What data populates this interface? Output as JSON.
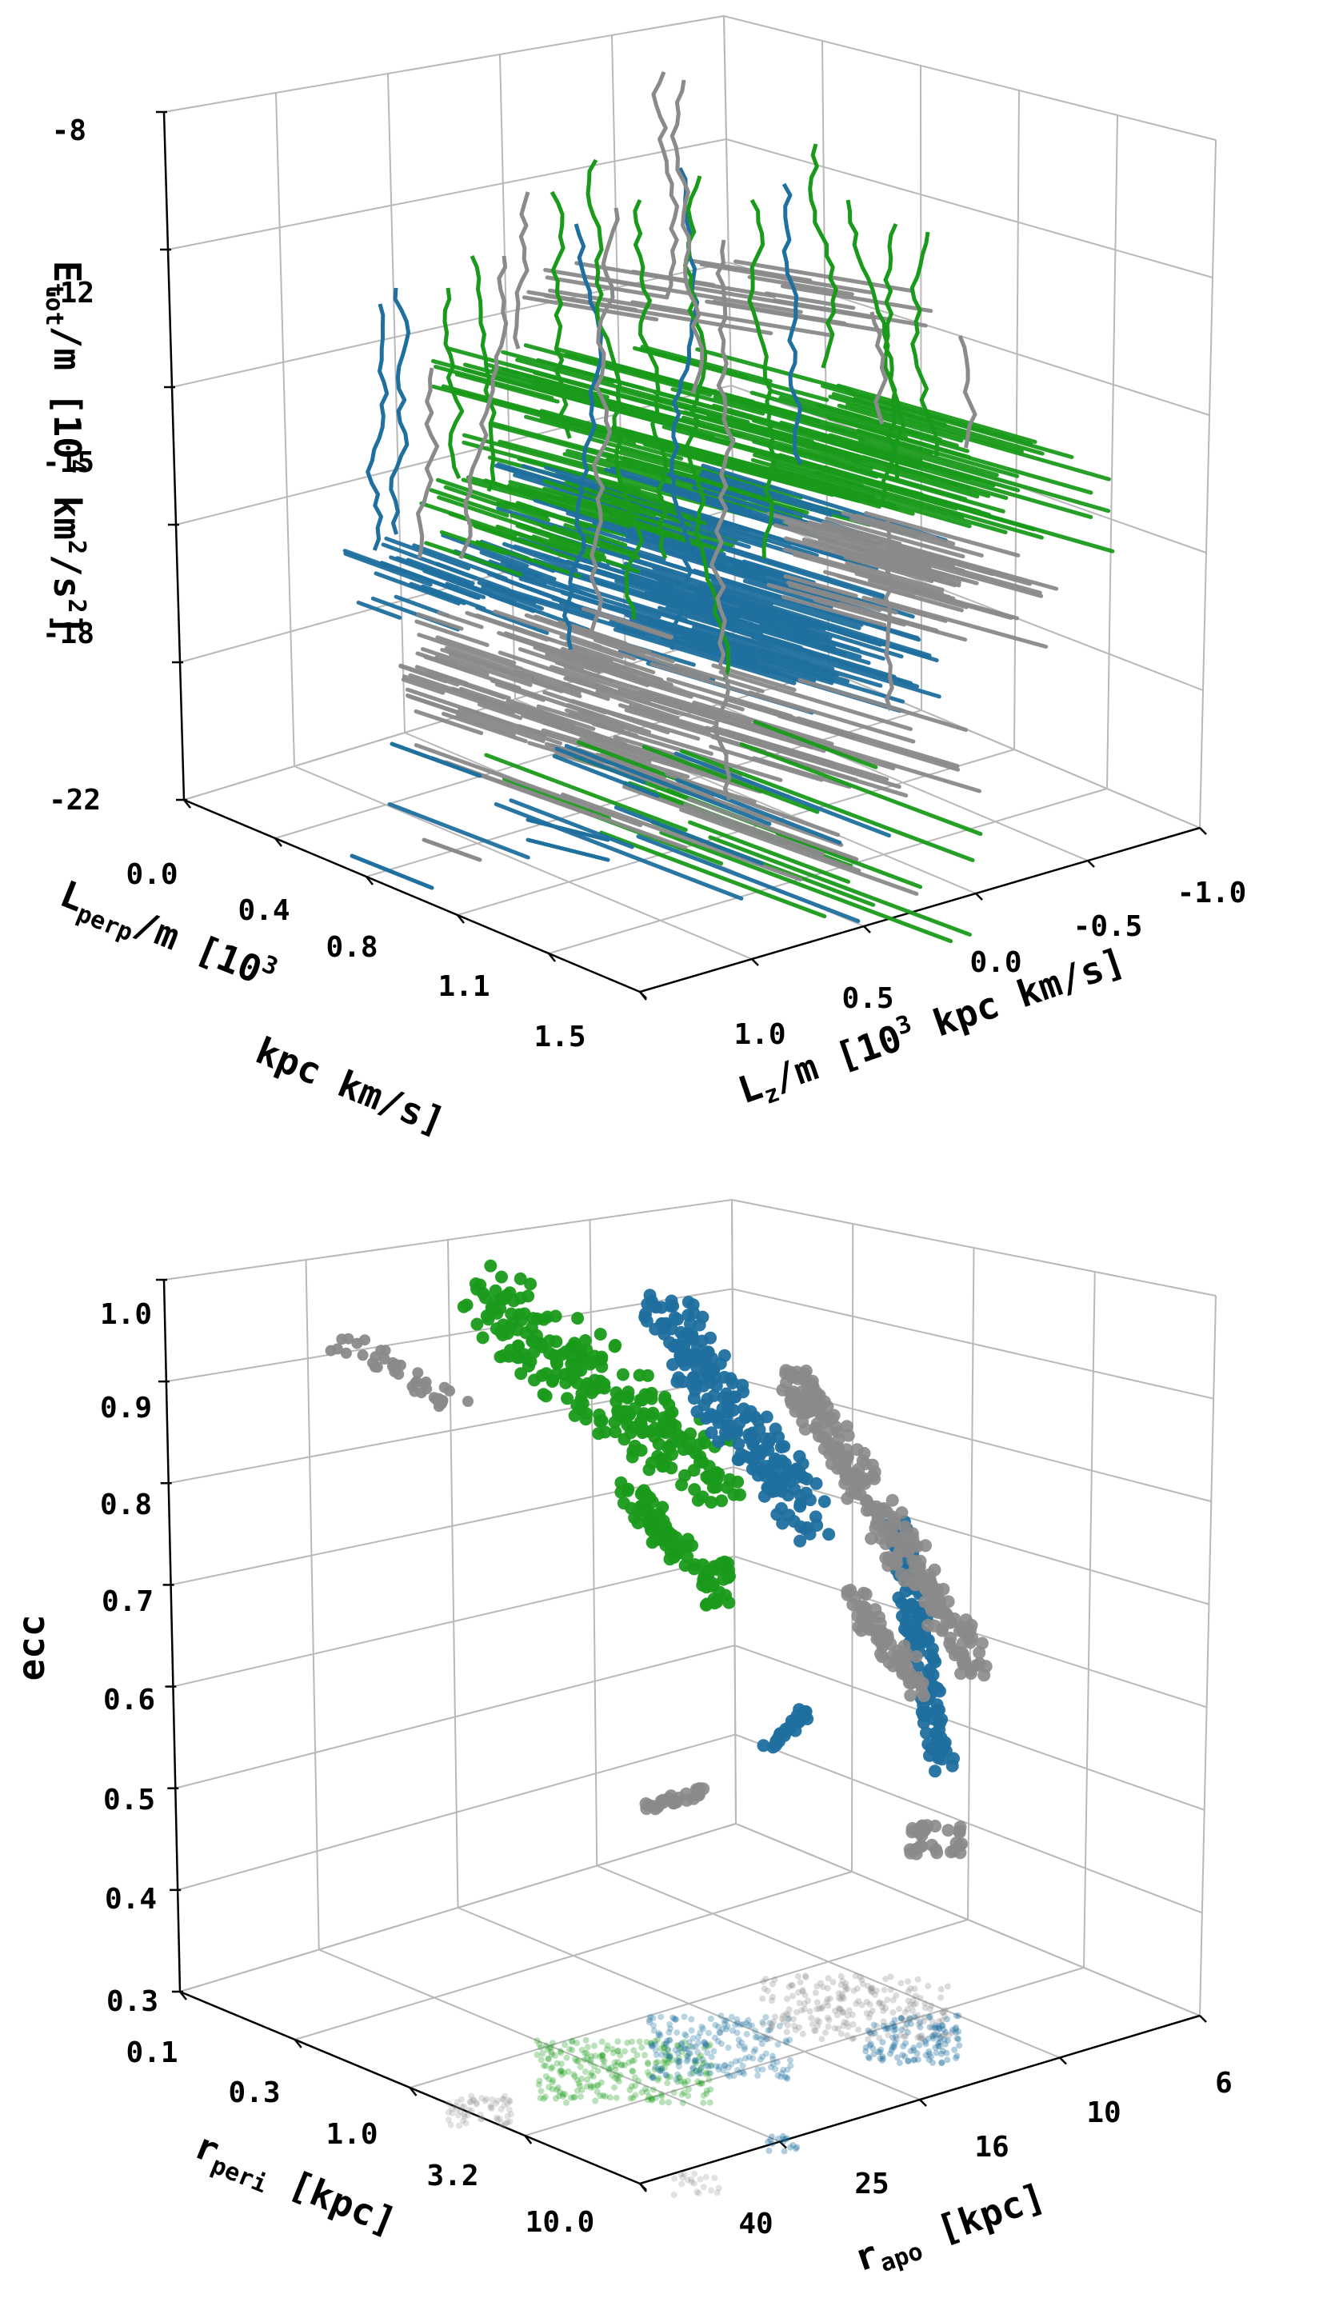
{
  "colors": {
    "blue": "#1f6f9f",
    "green": "#1a9a1a",
    "gray": "#8a8a8a",
    "grid": "#b8b8b8"
  },
  "chart_data": [
    {
      "type": "line",
      "projection": "3d",
      "title": "",
      "zlabel_text": "E",
      "zlabel_sub": "tot",
      "zlabel_rest": "/m [10",
      "zlabel_sup": "4",
      "zlabel_rest2": " km",
      "zlabel_sup2": "2",
      "zlabel_rest3": "/s",
      "zlabel_sup3": "2",
      "zlabel_end": "]",
      "xlabel_text": "L",
      "xlabel_sub": "perp",
      "xlabel_rest": "/m [10",
      "xlabel_sup": "3",
      "xlabel_line2": "kpc km/s]",
      "ylabel_text": "L",
      "ylabel_sub": "z",
      "ylabel_rest": "/m [10",
      "ylabel_sup": "3",
      "ylabel_rest2": " kpc km/s]",
      "z_ticks": [
        "-8",
        "-12",
        "-15",
        "-18",
        "-22"
      ],
      "x_ticks": [
        "0.0",
        "0.4",
        "0.8",
        "1.1",
        "1.5"
      ],
      "y_ticks": [
        "1.0",
        "0.5",
        "0.0",
        "-0.5",
        "-1.0"
      ],
      "zlim": [
        -22,
        -8
      ],
      "xlim": [
        0.0,
        1.5
      ],
      "ylim": [
        1.0,
        -1.0
      ],
      "grid": true,
      "series_colors": [
        "blue",
        "green",
        "gray"
      ]
    },
    {
      "type": "scatter",
      "projection": "3d",
      "title": "",
      "zlabel": "ecc",
      "xlabel_text": "r",
      "xlabel_sub": "peri",
      "xlabel_rest": " [kpc]",
      "ylabel_text": "r",
      "ylabel_sub": "apo",
      "ylabel_rest": " [kpc]",
      "z_ticks": [
        "1.0",
        "0.9",
        "0.8",
        "0.7",
        "0.6",
        "0.5",
        "0.4",
        "0.3"
      ],
      "x_ticks": [
        "0.1",
        "0.3",
        "1.0",
        "3.2",
        "10.0"
      ],
      "y_ticks": [
        "40",
        "25",
        "16",
        "10",
        "6"
      ],
      "zlim": [
        0.3,
        1.0
      ],
      "grid": true,
      "series_colors": [
        "blue",
        "green",
        "gray"
      ]
    }
  ]
}
